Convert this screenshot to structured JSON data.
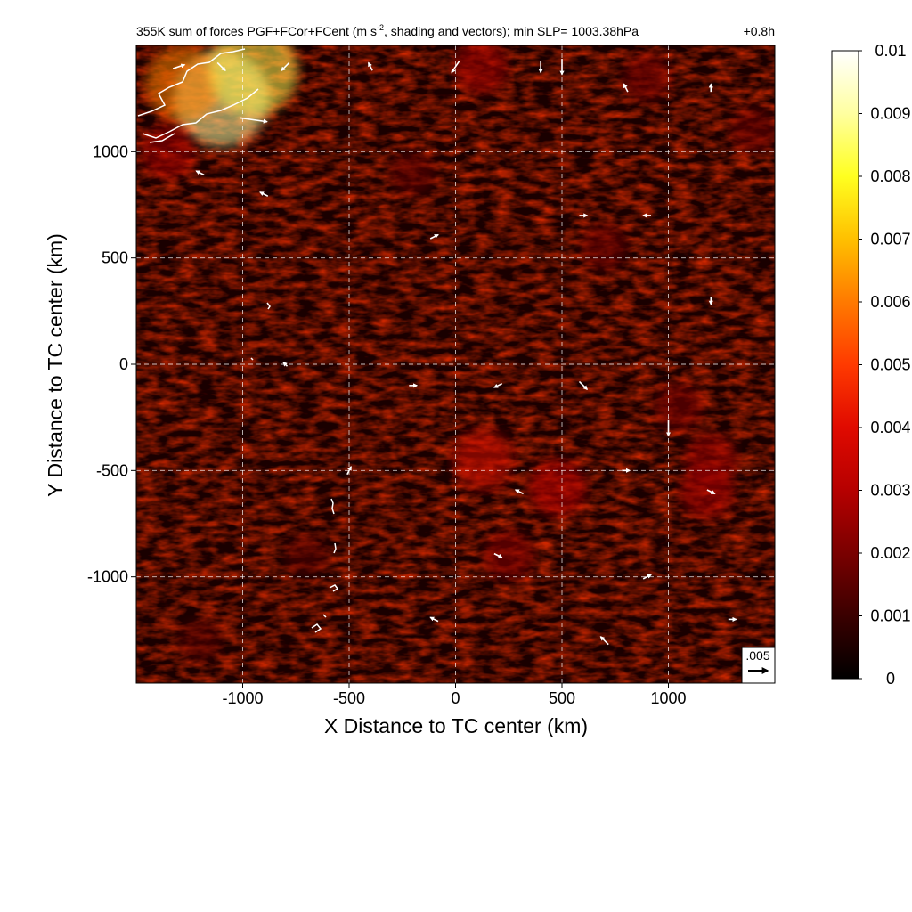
{
  "chart_data": {
    "type": "heatmap",
    "title": "355K sum of forces PGF+FCor+FCent (m s",
    "title_sup": "-2",
    "title_rest": ", shading and vectors); min SLP= 1003.38hPa",
    "time_label": "+0.8h",
    "xlabel": "X Distance to TC center (km)",
    "ylabel": "Y Distance to TC center (km)",
    "xlim": [
      -1500,
      1500
    ],
    "ylim": [
      -1500,
      1500
    ],
    "xticks": [
      -1000,
      -500,
      0,
      500,
      1000
    ],
    "xtick_labels": [
      "-1000",
      "-500",
      "0",
      "500",
      "1000"
    ],
    "yticks": [
      -1000,
      -500,
      0,
      500,
      1000
    ],
    "ytick_labels": [
      "-1000",
      "-500",
      "0",
      "500",
      "1000"
    ],
    "grid": true,
    "colorbar": {
      "range": [
        0,
        0.01
      ],
      "ticks": [
        0,
        0.001,
        0.002,
        0.003,
        0.004,
        0.005,
        0.006,
        0.007,
        0.008,
        0.009,
        0.01
      ],
      "tick_labels": [
        "0",
        "0.001",
        "0.002",
        "0.003",
        "0.004",
        "0.005",
        "0.006",
        "0.007",
        "0.008",
        "0.009",
        "0.01"
      ],
      "colors": [
        "#000000",
        "#5a0000",
        "#b40000",
        "#ff2a00",
        "#ffbf00",
        "#ffff60",
        "#ffffff"
      ],
      "placement": "right"
    },
    "reference_vector": {
      "label": ".005",
      "value": 0.005
    },
    "hotspots": [
      {
        "x": -1100,
        "y": 1250,
        "value": 0.009
      },
      {
        "x": -1280,
        "y": 1320,
        "value": 0.006
      },
      {
        "x": -950,
        "y": 1380,
        "value": 0.008
      },
      {
        "x": 130,
        "y": -450,
        "value": 0.004
      },
      {
        "x": 480,
        "y": -580,
        "value": 0.0035
      },
      {
        "x": 1180,
        "y": -600,
        "value": 0.003
      },
      {
        "x": 1200,
        "y": -450,
        "value": 0.0028
      },
      {
        "x": 250,
        "y": -900,
        "value": 0.0025
      },
      {
        "x": 120,
        "y": 1400,
        "value": 0.003
      },
      {
        "x": -1350,
        "y": 1000,
        "value": 0.003
      },
      {
        "x": 900,
        "y": 1350,
        "value": 0.0022
      },
      {
        "x": 1400,
        "y": 1100,
        "value": 0.002
      },
      {
        "x": -200,
        "y": 900,
        "value": 0.0018
      },
      {
        "x": 700,
        "y": 550,
        "value": 0.002
      },
      {
        "x": 1050,
        "y": -200,
        "value": 0.0022
      },
      {
        "x": -700,
        "y": -900,
        "value": 0.0015
      },
      {
        "x": -1200,
        "y": -1300,
        "value": 0.0015
      }
    ],
    "vectors": [
      {
        "x": -1300,
        "y": 1400,
        "u": 0.003,
        "v": 0.001
      },
      {
        "x": -1100,
        "y": 1400,
        "u": 0.002,
        "v": -0.002
      },
      {
        "x": -950,
        "y": 1150,
        "u": 0.007,
        "v": -0.001
      },
      {
        "x": -800,
        "y": 1400,
        "u": -0.002,
        "v": -0.002
      },
      {
        "x": -400,
        "y": 1400,
        "u": -0.001,
        "v": 0.002
      },
      {
        "x": 0,
        "y": 1400,
        "u": -0.002,
        "v": -0.003
      },
      {
        "x": 400,
        "y": 1400,
        "u": 0.0,
        "v": -0.003
      },
      {
        "x": 500,
        "y": 1400,
        "u": 0.0,
        "v": -0.004
      },
      {
        "x": 800,
        "y": 1300,
        "u": -0.001,
        "v": 0.002
      },
      {
        "x": 1200,
        "y": 1300,
        "u": 0.0,
        "v": 0.002
      },
      {
        "x": -1200,
        "y": 900,
        "u": -0.002,
        "v": 0.001
      },
      {
        "x": -900,
        "y": 800,
        "u": -0.002,
        "v": 0.001
      },
      {
        "x": 600,
        "y": 700,
        "u": 0.002,
        "v": 0.0
      },
      {
        "x": 900,
        "y": 700,
        "u": -0.002,
        "v": 0.0
      },
      {
        "x": -100,
        "y": 600,
        "u": 0.002,
        "v": 0.001
      },
      {
        "x": 1200,
        "y": 300,
        "u": 0.0,
        "v": -0.002
      },
      {
        "x": -800,
        "y": 0,
        "u": -0.001,
        "v": 0.001
      },
      {
        "x": -200,
        "y": -100,
        "u": 0.002,
        "v": 0.0
      },
      {
        "x": 200,
        "y": -100,
        "u": -0.002,
        "v": -0.001
      },
      {
        "x": 600,
        "y": -100,
        "u": 0.002,
        "v": -0.002
      },
      {
        "x": 1000,
        "y": -300,
        "u": 0.0,
        "v": -0.004
      },
      {
        "x": -500,
        "y": -500,
        "u": 0.001,
        "v": 0.002
      },
      {
        "x": 300,
        "y": -600,
        "u": -0.002,
        "v": 0.001
      },
      {
        "x": 800,
        "y": -500,
        "u": 0.002,
        "v": 0.0
      },
      {
        "x": 1200,
        "y": -600,
        "u": 0.002,
        "v": -0.001
      },
      {
        "x": 200,
        "y": -900,
        "u": 0.002,
        "v": -0.001
      },
      {
        "x": 900,
        "y": -1000,
        "u": 0.002,
        "v": 0.001
      },
      {
        "x": -100,
        "y": -1200,
        "u": -0.002,
        "v": 0.001
      },
      {
        "x": 700,
        "y": -1300,
        "u": -0.002,
        "v": 0.002
      },
      {
        "x": 1300,
        "y": -1200,
        "u": 0.002,
        "v": 0.0
      }
    ]
  }
}
